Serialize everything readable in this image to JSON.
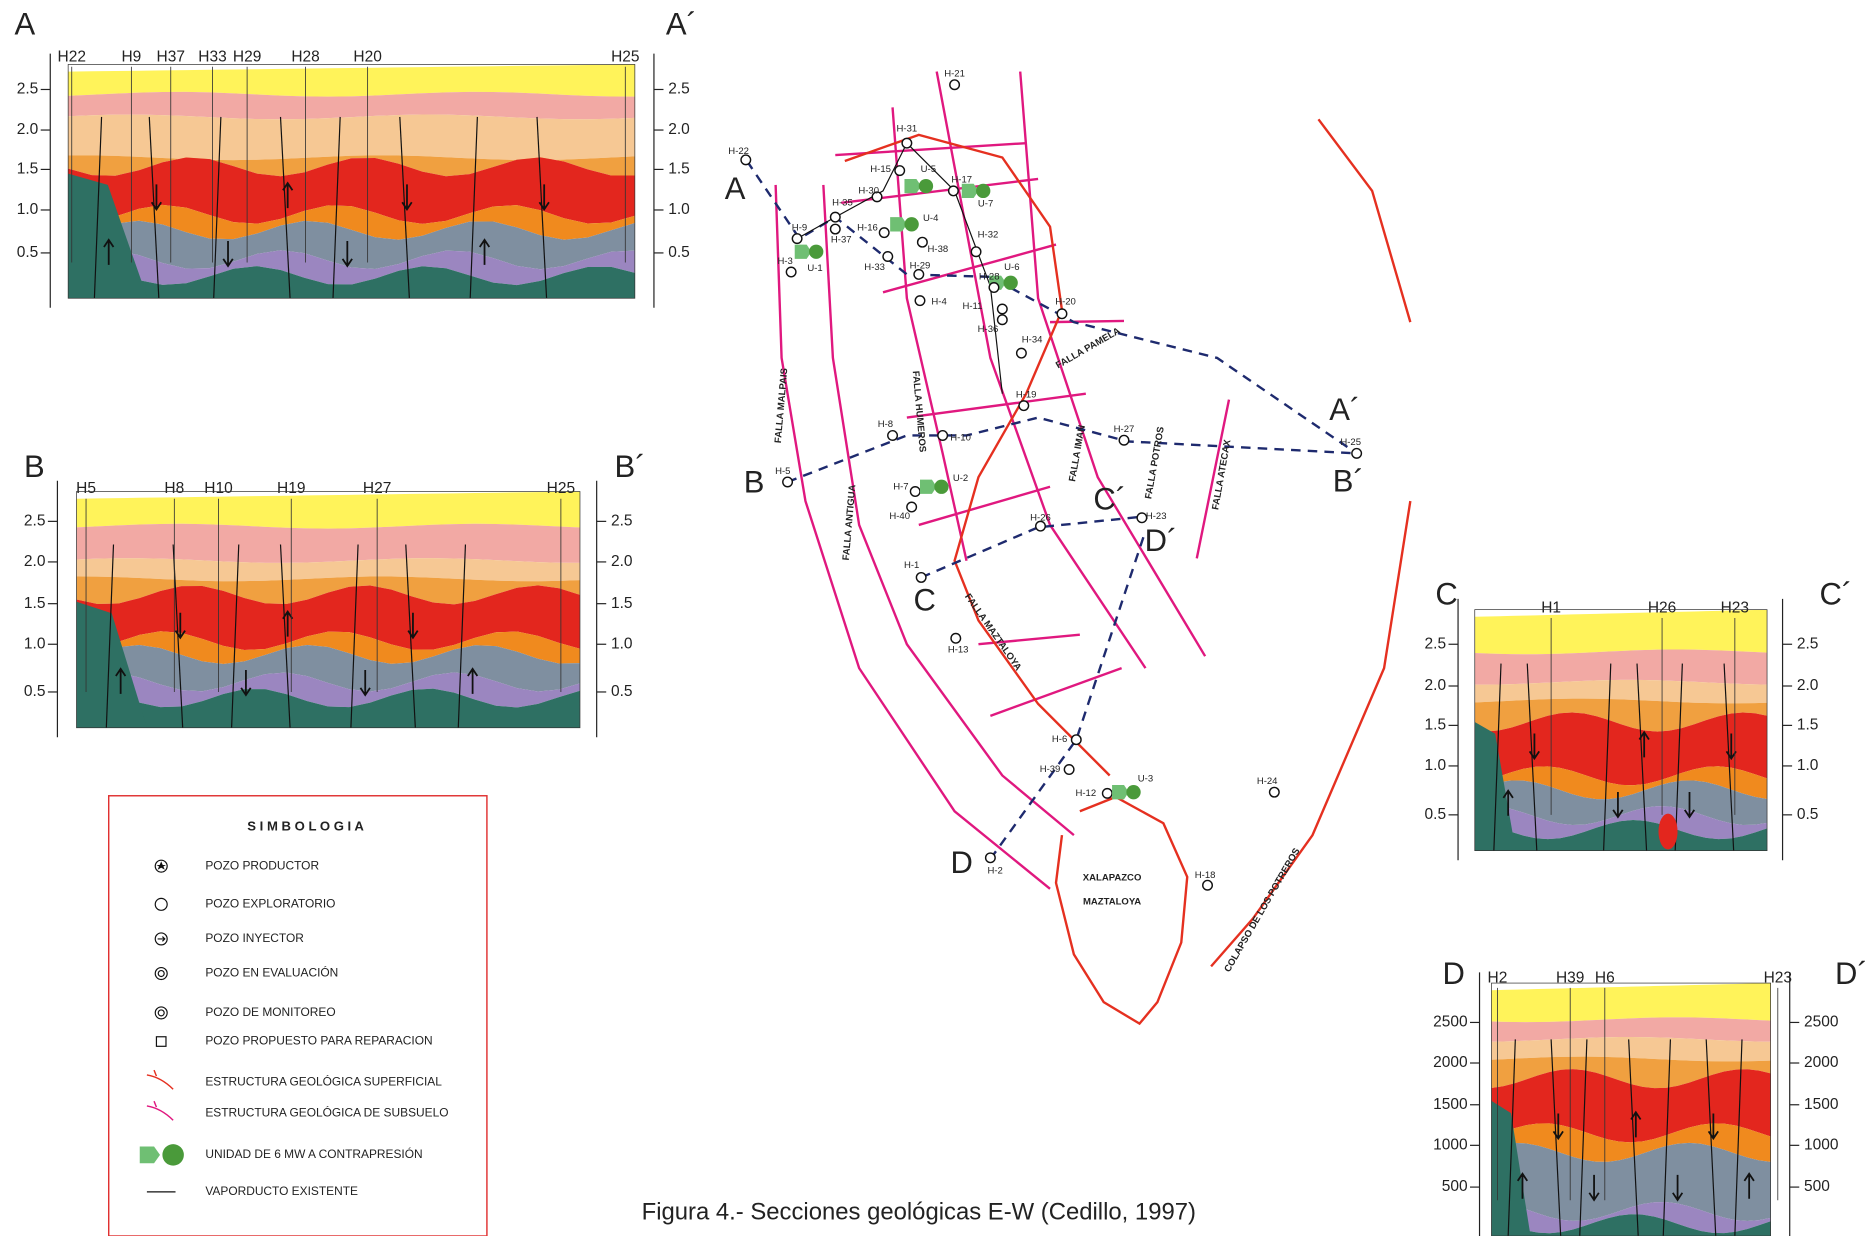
{
  "caption": "Figura 4.- Secciones geológicas E-W (Cedillo, 1997)",
  "sections": [
    {
      "start": "A",
      "end": "A´",
      "wells": [
        "H22",
        "H9",
        "H37",
        "H33",
        "H29",
        "H28",
        "H20",
        "H25"
      ],
      "depth_ticks": [
        "2.5",
        "2.0",
        "1.5",
        "1.0",
        "0.5"
      ]
    },
    {
      "start": "B",
      "end": "B´",
      "wells": [
        "H5",
        "H8",
        "H10",
        "H19",
        "H27",
        "H25"
      ],
      "depth_ticks": [
        "2.5",
        "2.0",
        "1.5",
        "1.0",
        "0.5"
      ]
    },
    {
      "start": "C",
      "end": "C´",
      "wells": [
        "H1",
        "H26",
        "H23"
      ],
      "depth_ticks": [
        "2.5",
        "2.0",
        "1.5",
        "1.0",
        "0.5"
      ]
    },
    {
      "start": "D",
      "end": "D´",
      "wells": [
        "H2",
        "H39",
        "H6",
        "H23"
      ],
      "depth_ticks": [
        "2500",
        "2000",
        "1500",
        "1000",
        "500"
      ]
    }
  ],
  "map": {
    "endpoints": [
      "A",
      "A´",
      "B",
      "B´",
      "C",
      "C´",
      "D",
      "D´"
    ],
    "wells": [
      "H-21",
      "H-22",
      "H-31",
      "H-15",
      "U-5",
      "H-17",
      "U-7",
      "H-30",
      "H-35",
      "H-16",
      "U-4",
      "H-9",
      "H-37",
      "H-33",
      "H-38",
      "U-1",
      "H-3",
      "H-32",
      "H-29",
      "U-6",
      "H-28",
      "H-4",
      "H-11",
      "H-36",
      "H-20",
      "H-34",
      "H-19",
      "H-8",
      "H-10",
      "H-27",
      "H-25",
      "H-5",
      "H-7",
      "U-2",
      "H-40",
      "H-26",
      "H-23",
      "H-1",
      "H-13",
      "H-6",
      "H-39",
      "H-12",
      "U-3",
      "H-24",
      "H-2",
      "H-18"
    ],
    "faults": [
      "FALLA MALPAIS",
      "FALLA ANTIGUA",
      "FALLA HUMEROS",
      "FALLA MAZTALOYA",
      "FALLA PAMELA",
      "FALLA IMAN",
      "FALLA POTROS",
      "FALLA ATECAX",
      "COLAPSO DE LOS POTREROS"
    ],
    "caldera": [
      "XALAPAZCO",
      "MAZTALOYA"
    ]
  },
  "legend": {
    "title": "S I M B O L O G I A",
    "items": [
      "POZO PRODUCTOR",
      "POZO EXPLORATORIO",
      "POZO INYECTOR",
      "POZO EN EVALUACIÓN",
      "POZO DE MONITOREO",
      "POZO PROPUESTO PARA REPARACION",
      "ESTRUCTURA GEOLÓGICA SUPERFICIAL",
      "ESTRUCTURA GEOLÓGICA DE SUBSUELO",
      "UNIDAD DE 6 MW A CONTRAPRESIÓN",
      "VAPORDUCTO EXISTENTE"
    ]
  }
}
